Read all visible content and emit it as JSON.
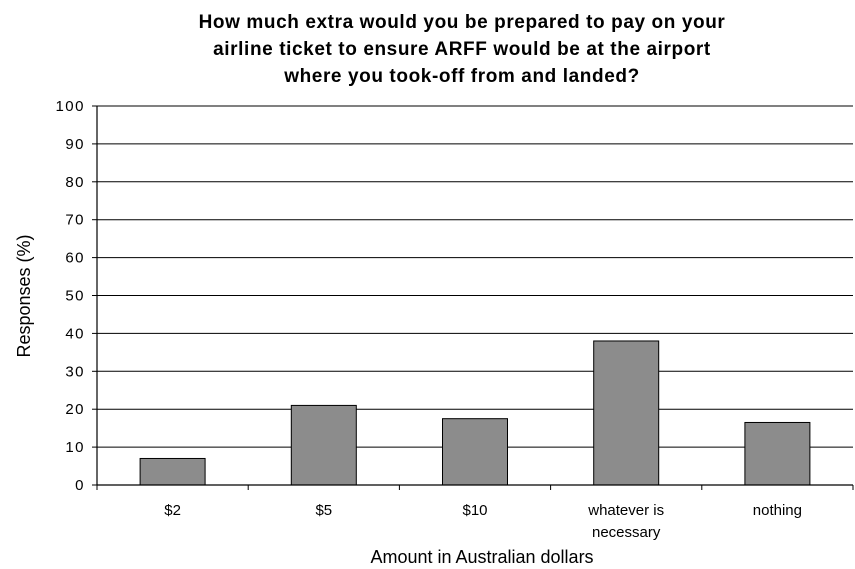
{
  "chart_data": {
    "type": "bar",
    "title_lines": [
      "How much extra would you be prepared to pay on your",
      "airline ticket to ensure ARFF would be at the airport",
      "where you took-off from and landed?"
    ],
    "xlabel": "Amount in Australian dollars",
    "ylabel": "Responses (%)",
    "ylim": [
      0,
      100
    ],
    "yticks": [
      0,
      10,
      20,
      30,
      40,
      50,
      60,
      70,
      80,
      90,
      100
    ],
    "categories": [
      [
        "$2"
      ],
      [
        "$5"
      ],
      [
        "$10"
      ],
      [
        "whatever is",
        "necessary"
      ],
      [
        "nothing"
      ]
    ],
    "values": [
      7,
      21,
      17.5,
      38,
      16.5
    ],
    "grid": true,
    "legend": "none",
    "bar_color": "#8c8c8c",
    "bar_edge_color": "#000000",
    "grid_color": "#000000"
  }
}
